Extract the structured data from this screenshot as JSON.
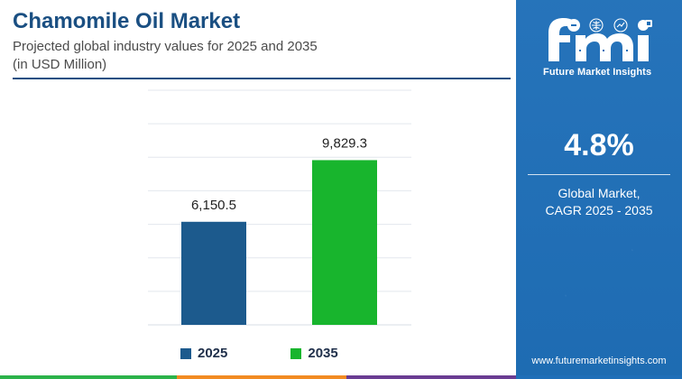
{
  "header": {
    "title": "Chamomile Oil Market",
    "subtitle_line1": "Projected global industry values for 2025 and 2035",
    "subtitle_line2": "(in USD Million)"
  },
  "chart_data": {
    "type": "bar",
    "categories": [
      "2025",
      "2035"
    ],
    "values": [
      6150.5,
      9829.3
    ],
    "value_labels": [
      "6,150.5",
      "9,829.3"
    ],
    "legend": [
      "2025",
      "2035"
    ],
    "colors": [
      "#1c5a8d",
      "#18b52d"
    ],
    "grid": true,
    "ylim": [
      0,
      14000
    ]
  },
  "sidebar": {
    "logo_text": "Future Market Insights",
    "cagr_value": "4.8%",
    "cagr_label_line1": "Global Market,",
    "cagr_label_line2": "CAGR 2025 - 2035",
    "website": "www.futuremarketinsights.com"
  }
}
